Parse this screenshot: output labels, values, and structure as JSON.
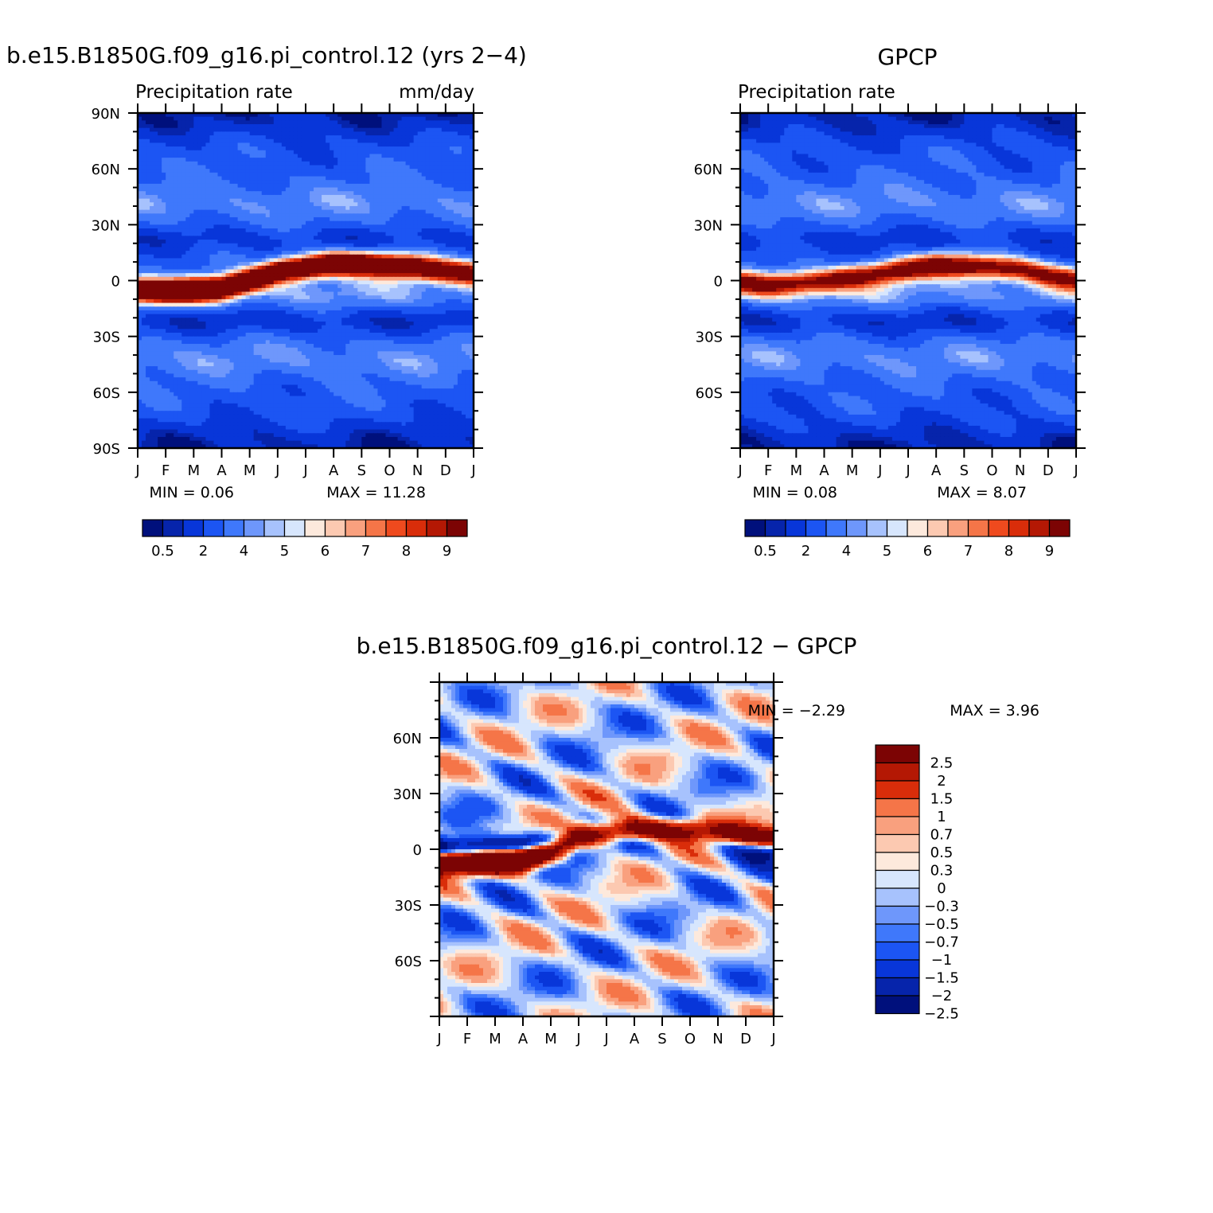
{
  "palettes": {
    "precip": [
      "#00107c",
      "#0624ab",
      "#0836d9",
      "#1c55f3",
      "#3f78fb",
      "#6e97fb",
      "#a7c2fd",
      "#d7e6fd",
      "#fde9dc",
      "#fcc9b1",
      "#f9a07e",
      "#f57548",
      "#ef4a1e",
      "#d92d0a",
      "#b41804",
      "#7c0404"
    ],
    "diff": [
      "#7c0404",
      "#b41804",
      "#d92d0a",
      "#f57548",
      "#f9a07e",
      "#fcc9b1",
      "#fde9dc",
      "#d7e6fd",
      "#a7c2fd",
      "#6e97fb",
      "#3f78fb",
      "#1c55f3",
      "#0836d9",
      "#0624ab",
      "#00107c"
    ]
  },
  "chart_data": [
    {
      "type": "heatmap",
      "title": "b.e15.B1850G.f09_g16.pi_control.12 (yrs 2−4)",
      "subtitle_left": "Precipitation rate",
      "subtitle_right": "mm/day",
      "x_ticks": [
        "J",
        "F",
        "M",
        "A",
        "M",
        "J",
        "J",
        "A",
        "S",
        "O",
        "N",
        "D",
        "J"
      ],
      "y_ticks": [
        "90N",
        "60N",
        "30N",
        "0",
        "30S",
        "60S",
        "90S"
      ],
      "ylim": [
        -90,
        90
      ],
      "min_text": "MIN =    0.06",
      "max_text": "MAX =    11.28",
      "min": 0.06,
      "max": 11.28,
      "colorbar_labels": [
        "0.5",
        "2",
        "4",
        "5",
        "6",
        "7",
        "8",
        "9"
      ],
      "itcz_lat_by_month": [
        -5,
        -6,
        -5,
        -4,
        0,
        5,
        7,
        9,
        9,
        8,
        7,
        5,
        4
      ],
      "itcz_peak_by_month": [
        8.5,
        9,
        10,
        10,
        9.5,
        10,
        10.5,
        11,
        10.5,
        10,
        9,
        8,
        7.5
      ]
    },
    {
      "type": "heatmap",
      "title": "GPCP",
      "subtitle_left": "Precipitation rate",
      "subtitle_right": "",
      "x_ticks": [
        "J",
        "F",
        "M",
        "A",
        "M",
        "J",
        "J",
        "A",
        "S",
        "O",
        "N",
        "D",
        "J"
      ],
      "y_ticks": [
        "60N",
        "30N",
        "0",
        "30S",
        "60S"
      ],
      "ylim": [
        -90,
        90
      ],
      "min_text": "MIN =    0.08",
      "max_text": "MAX =    8.07",
      "min": 0.08,
      "max": 8.07,
      "colorbar_labels": [
        "0.5",
        "2",
        "4",
        "5",
        "6",
        "7",
        "8",
        "9"
      ],
      "itcz_lat_by_month": [
        -1,
        -2,
        -1,
        0,
        2,
        4,
        6,
        8,
        8,
        7,
        6,
        3,
        1
      ],
      "itcz_peak_by_month": [
        6,
        6.5,
        6.5,
        6.5,
        7,
        7,
        7.5,
        8,
        8,
        7.5,
        7,
        6.5,
        6
      ]
    },
    {
      "type": "heatmap",
      "title": "b.e15.B1850G.f09_g16.pi_control.12 − GPCP",
      "x_ticks": [
        "J",
        "F",
        "M",
        "A",
        "M",
        "J",
        "J",
        "A",
        "S",
        "O",
        "N",
        "D",
        "J"
      ],
      "y_ticks": [
        "60N",
        "30N",
        "0",
        "30S",
        "60S"
      ],
      "ylim": [
        -90,
        90
      ],
      "min_text": "MIN =    −2.29",
      "max_text": "MAX =    3.96",
      "min": -2.29,
      "max": 3.96,
      "colorbar_labels": [
        "2.5",
        "2",
        "1.5",
        "1",
        "0.7",
        "0.5",
        "0.3",
        "0",
        "−0.3",
        "−0.5",
        "−0.7",
        "−1",
        "−1.5",
        "−2",
        "−2.5"
      ]
    }
  ]
}
